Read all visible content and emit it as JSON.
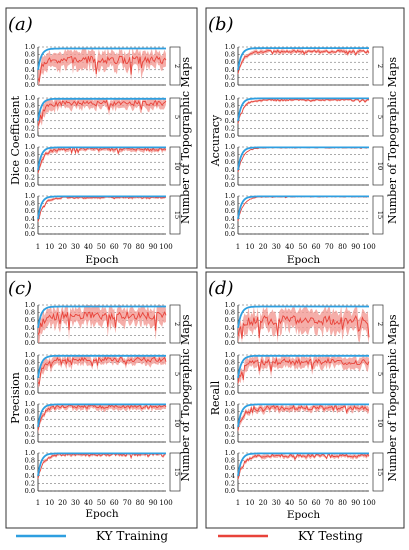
{
  "figure": {
    "legend": {
      "training": {
        "label": "KY Training",
        "color": "#2e9fe0"
      },
      "testing": {
        "label": "KY Testing",
        "color": "#e8433a"
      }
    },
    "band_color": "#f39a94",
    "frame_color": "#333333"
  },
  "chart_data": [
    {
      "panel": "(a)",
      "type": "line",
      "ylabel": "Dice Coefficient",
      "xlabel": "Epoch",
      "right_label": "Number of Topographic Maps",
      "x_ticks": [
        1,
        10,
        20,
        30,
        40,
        50,
        60,
        70,
        80,
        90,
        100
      ],
      "y_ticks": [
        "0.0",
        "0.2",
        "0.4",
        "0.6",
        "0.8",
        "1.0"
      ],
      "xlim": [
        1,
        100
      ],
      "ylim": [
        0,
        1
      ],
      "legend": "bottom",
      "grid": "dashed horizontal",
      "subplots": [
        {
          "maps": "2",
          "train_final": 0.96,
          "test_mean": 0.66,
          "band": 0.22,
          "noise": 0.1
        },
        {
          "maps": "5",
          "train_final": 0.98,
          "test_mean": 0.86,
          "band": 0.14,
          "noise": 0.07
        },
        {
          "maps": "10",
          "train_final": 0.99,
          "test_mean": 0.94,
          "band": 0.06,
          "noise": 0.04
        },
        {
          "maps": "15",
          "train_final": 0.99,
          "test_mean": 0.96,
          "band": 0.03,
          "noise": 0.02
        }
      ]
    },
    {
      "panel": "(b)",
      "type": "line",
      "ylabel": "Accuracy",
      "xlabel": "Epoch",
      "right_label": "Number of Topographic Maps",
      "x_ticks": [
        1,
        10,
        20,
        30,
        40,
        50,
        60,
        70,
        80,
        90,
        100
      ],
      "y_ticks": [
        "0.0",
        "0.2",
        "0.4",
        "0.6",
        "0.8",
        "1.0"
      ],
      "xlim": [
        1,
        100
      ],
      "ylim": [
        0,
        1
      ],
      "legend": "bottom",
      "grid": "dashed horizontal",
      "subplots": [
        {
          "maps": "2",
          "train_final": 0.97,
          "test_mean": 0.88,
          "band": 0.05,
          "noise": 0.03
        },
        {
          "maps": "5",
          "train_final": 0.99,
          "test_mean": 0.95,
          "band": 0.03,
          "noise": 0.02
        },
        {
          "maps": "10",
          "train_final": 0.99,
          "test_mean": 0.98,
          "band": 0.01,
          "noise": 0.01
        },
        {
          "maps": "15",
          "train_final": 0.99,
          "test_mean": 0.98,
          "band": 0.01,
          "noise": 0.01
        }
      ]
    },
    {
      "panel": "(c)",
      "type": "line",
      "ylabel": "Precision",
      "xlabel": "Epoch",
      "right_label": "Number of Topographic Maps",
      "x_ticks": [
        1,
        10,
        20,
        30,
        40,
        50,
        60,
        70,
        80,
        90,
        100
      ],
      "y_ticks": [
        "0.0",
        "0.2",
        "0.4",
        "0.6",
        "0.8",
        "1.0"
      ],
      "xlim": [
        1,
        100
      ],
      "ylim": [
        0,
        1
      ],
      "legend": "bottom",
      "grid": "dashed horizontal",
      "subplots": [
        {
          "maps": "2",
          "train_final": 0.96,
          "test_mean": 0.72,
          "band": 0.22,
          "noise": 0.1
        },
        {
          "maps": "5",
          "train_final": 0.98,
          "test_mean": 0.88,
          "band": 0.12,
          "noise": 0.06
        },
        {
          "maps": "10",
          "train_final": 0.99,
          "test_mean": 0.93,
          "band": 0.08,
          "noise": 0.05
        },
        {
          "maps": "15",
          "train_final": 0.99,
          "test_mean": 0.96,
          "band": 0.04,
          "noise": 0.03
        }
      ]
    },
    {
      "panel": "(d)",
      "type": "line",
      "ylabel": "Recall",
      "xlabel": "Epoch",
      "right_label": "Number of Topographic Maps",
      "x_ticks": [
        1,
        10,
        20,
        30,
        40,
        50,
        60,
        70,
        80,
        90,
        100
      ],
      "y_ticks": [
        "0.0",
        "0.2",
        "0.4",
        "0.6",
        "0.8",
        "1.0"
      ],
      "xlim": [
        1,
        100
      ],
      "ylim": [
        0,
        1
      ],
      "legend": "bottom",
      "grid": "dashed horizontal",
      "subplots": [
        {
          "maps": "2",
          "train_final": 0.96,
          "test_mean": 0.6,
          "band": 0.25,
          "noise": 0.12
        },
        {
          "maps": "5",
          "train_final": 0.98,
          "test_mean": 0.82,
          "band": 0.14,
          "noise": 0.08
        },
        {
          "maps": "10",
          "train_final": 0.99,
          "test_mean": 0.9,
          "band": 0.08,
          "noise": 0.06
        },
        {
          "maps": "15",
          "train_final": 0.99,
          "test_mean": 0.93,
          "band": 0.05,
          "noise": 0.04
        }
      ]
    }
  ]
}
